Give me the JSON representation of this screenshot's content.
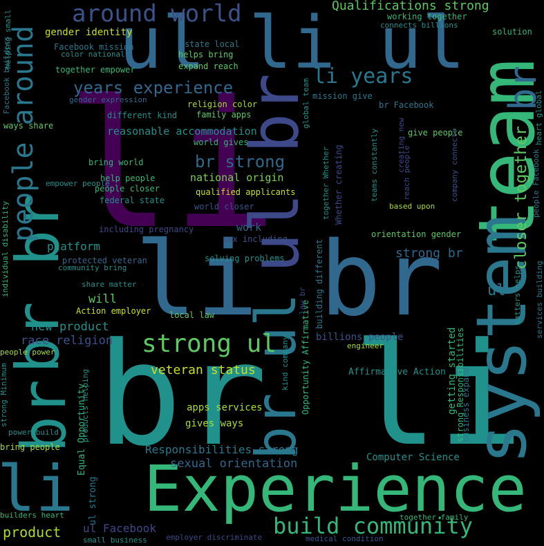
{
  "words": [
    {
      "text": "li",
      "color": "#440154"
    },
    {
      "text": "br li",
      "color": "#21918c"
    },
    {
      "text": "li br",
      "color": "#31688e"
    },
    {
      "text": "Experience",
      "color": "#35b779"
    },
    {
      "text": "li",
      "color": "#2a788e"
    },
    {
      "text": "ul li ul",
      "color": "#31688e"
    },
    {
      "text": "team",
      "color": "#35b779"
    },
    {
      "text": "system",
      "color": "#2a788e"
    },
    {
      "text": "ul br",
      "color": "#3e4989"
    },
    {
      "text": "br ul",
      "color": "#2a788e"
    },
    {
      "text": "br br",
      "color": "#21918c"
    },
    {
      "text": "br",
      "color": "#21918c"
    },
    {
      "text": "br",
      "color": "#31688e"
    },
    {
      "text": "people around",
      "color": "#2a788e"
    },
    {
      "text": "strong ul",
      "color": "#5ec962"
    },
    {
      "text": "build community",
      "color": "#35b779"
    },
    {
      "text": "around world",
      "color": "#3b528b"
    },
    {
      "text": "li years",
      "color": "#2a788e"
    },
    {
      "text": "years experience",
      "color": "#31688e"
    },
    {
      "text": "closer together",
      "color": "#5ec962"
    },
    {
      "text": "br strong",
      "color": "#31688e"
    },
    {
      "text": "Qualifications strong",
      "color": "#5ec962"
    },
    {
      "text": "veteran status",
      "color": "#c8e020"
    },
    {
      "text": "Responsibilities strong",
      "color": "#2a788e"
    },
    {
      "text": "sexual orientation",
      "color": "#31688e"
    },
    {
      "text": "product",
      "color": "#aadc32"
    },
    {
      "text": "ul Facebook",
      "color": "#3e4989"
    },
    {
      "text": "new product",
      "color": "#21918c"
    },
    {
      "text": "race religion",
      "color": "#3b528b"
    },
    {
      "text": "platform",
      "color": "#21918c"
    },
    {
      "text": "strong br",
      "color": "#31688e"
    },
    {
      "text": "work",
      "color": "#31688e"
    },
    {
      "text": "will",
      "color": "#5ec962"
    },
    {
      "text": "national origin",
      "color": "#7ad151"
    },
    {
      "text": "reasonable accommodation",
      "color": "#21918c"
    },
    {
      "text": "gender identity",
      "color": "#c8e020"
    },
    {
      "text": "Computer Science",
      "color": "#21918c"
    },
    {
      "text": "apps services",
      "color": "#aadc32"
    },
    {
      "text": "gives ways",
      "color": "#aadc32"
    },
    {
      "text": "Affirmative Action",
      "color": "#21918c"
    },
    {
      "text": "billions people",
      "color": "#3b528b"
    },
    {
      "text": "getting started",
      "color": "#35b779"
    },
    {
      "text": "Equal Opportunity",
      "color": "#35b779"
    },
    {
      "text": "ul strong",
      "color": "#2a788e"
    },
    {
      "text": "strong Responsibilities",
      "color": "#35b779"
    },
    {
      "text": "bring world",
      "color": "#35b779"
    },
    {
      "text": "help people",
      "color": "#35b779"
    },
    {
      "text": "people closer",
      "color": "#35b779"
    },
    {
      "text": "qualified applicants",
      "color": "#c8e020"
    },
    {
      "text": "world closer",
      "color": "#3b528b"
    },
    {
      "text": "federal state",
      "color": "#21918c"
    },
    {
      "text": "including pregnancy",
      "color": "#3e4989"
    },
    {
      "text": "protected veteran",
      "color": "#31688e"
    },
    {
      "text": "community bring",
      "color": "#21918c"
    },
    {
      "text": "share matter",
      "color": "#21918c"
    },
    {
      "text": "Action employer",
      "color": "#c8e020"
    },
    {
      "text": "local law",
      "color": "#5ec962"
    },
    {
      "text": "solving problems",
      "color": "#21918c"
    },
    {
      "text": "sex including",
      "color": "#3b528b"
    },
    {
      "text": "orientation gender",
      "color": "#5ec962"
    },
    {
      "text": "religion color",
      "color": "#aadc32"
    },
    {
      "text": "family apps",
      "color": "#5ec962"
    },
    {
      "text": "world gives",
      "color": "#35b779"
    },
    {
      "text": "different kind",
      "color": "#21918c"
    },
    {
      "text": "gender expression",
      "color": "#31688e"
    },
    {
      "text": "together empower",
      "color": "#35b779"
    },
    {
      "text": "ways share",
      "color": "#5ec962"
    },
    {
      "text": "Facebook mission",
      "color": "#2a788e"
    },
    {
      "text": "color national",
      "color": "#21918c"
    },
    {
      "text": "state local",
      "color": "#2a788e"
    },
    {
      "text": "helps bring",
      "color": "#5ec962"
    },
    {
      "text": "expand reach",
      "color": "#5ec962"
    },
    {
      "text": "working together",
      "color": "#35b779"
    },
    {
      "text": "connects billions",
      "color": "#21918c"
    },
    {
      "text": "solution",
      "color": "#35b779"
    },
    {
      "text": "mission give",
      "color": "#2a788e"
    },
    {
      "text": "br Facebook",
      "color": "#2a788e"
    },
    {
      "text": "give people",
      "color": "#5ec962"
    },
    {
      "text": "based upon",
      "color": "#aadc32"
    },
    {
      "text": "medical condition",
      "color": "#3b528b"
    },
    {
      "text": "together family",
      "color": "#35b779"
    },
    {
      "text": "employer discriminate",
      "color": "#3e4989"
    },
    {
      "text": "small business",
      "color": "#21918c"
    },
    {
      "text": "bring people",
      "color": "#aadc32"
    },
    {
      "text": "power build",
      "color": "#21918c"
    },
    {
      "text": "builders heart",
      "color": "#35b779"
    },
    {
      "text": "people power",
      "color": "#aadc32"
    },
    {
      "text": "empower people",
      "color": "#21918c"
    },
    {
      "text": "individual disability",
      "color": "#35b779"
    },
    {
      "text": "Opportunity Affirmative",
      "color": "#35b779"
    },
    {
      "text": "building different",
      "color": "#2a788e"
    },
    {
      "text": "together Whether",
      "color": "#21918c"
    },
    {
      "text": "Whether creating",
      "color": "#3e4989"
    },
    {
      "text": "creating new",
      "color": "#3e4989"
    },
    {
      "text": "reach people",
      "color": "#3e4989"
    },
    {
      "text": "teams constantly",
      "color": "#21918c"
    },
    {
      "text": "company connects",
      "color": "#3b528b"
    },
    {
      "text": "people Facebook",
      "color": "#2a788e"
    },
    {
      "text": "heart global",
      "color": "#21918c"
    },
    {
      "text": "services building",
      "color": "#2a788e"
    },
    {
      "text": "matters helps",
      "color": "#21918c"
    },
    {
      "text": "business expand",
      "color": "#2a788e"
    },
    {
      "text": "kind company",
      "color": "#21918c"
    },
    {
      "text": "Facebook builders",
      "color": "#2a788e"
    },
    {
      "text": "global team",
      "color": "#21918c"
    },
    {
      "text": "products helping",
      "color": "#21918c"
    },
    {
      "text": "strong Minimum",
      "color": "#21918c"
    },
    {
      "text": "helping small",
      "color": "#21918c"
    },
    {
      "text": "law br",
      "color": "#3e4989"
    },
    {
      "text": "engineer",
      "color": "#aadc32"
    },
    {
      "text": "ul",
      "color": "#2a788e"
    }
  ]
}
